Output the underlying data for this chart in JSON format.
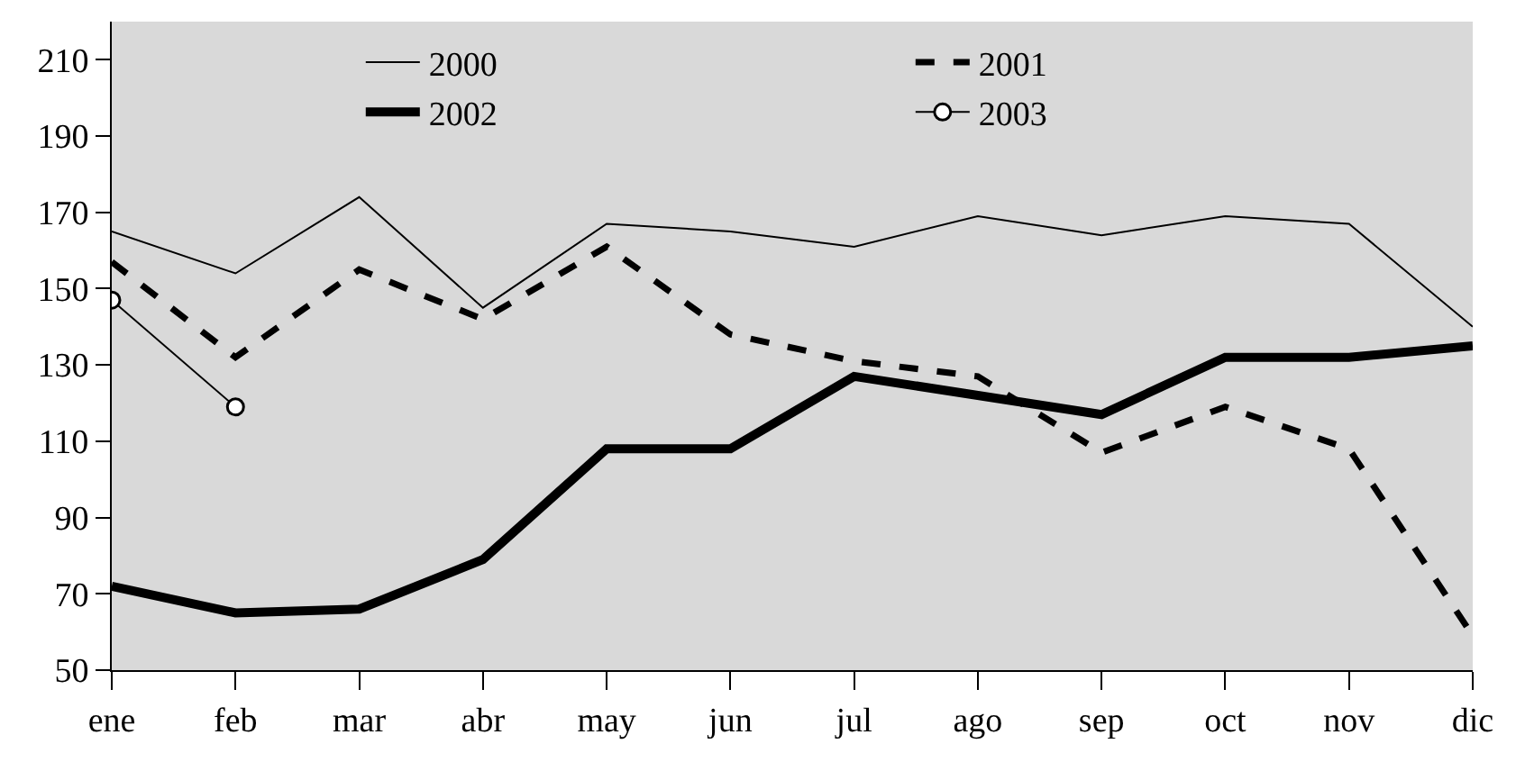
{
  "chart_data": {
    "type": "line",
    "categories": [
      "ene",
      "feb",
      "mar",
      "abr",
      "may",
      "jun",
      "jul",
      "ago",
      "sep",
      "oct",
      "nov",
      "dic"
    ],
    "series": [
      {
        "name": "2000",
        "color": "#000000",
        "line_style": "solid",
        "marker": "none",
        "values": [
          165,
          154,
          174,
          145,
          167,
          165,
          161,
          169,
          164,
          169,
          167,
          140
        ]
      },
      {
        "name": "2001",
        "color": "#000000",
        "line_style": "dashed",
        "marker": "none",
        "values": [
          157,
          132,
          155,
          142,
          161,
          138,
          131,
          127,
          107,
          119,
          108,
          59
        ]
      },
      {
        "name": "2002",
        "color": "#000000",
        "line_style": "solid",
        "marker": "none",
        "values": [
          72,
          65,
          66,
          79,
          108,
          108,
          127,
          122,
          117,
          132,
          132,
          135
        ]
      },
      {
        "name": "2003",
        "color": "#000000",
        "line_style": "solid",
        "marker": "circle",
        "values": [
          147,
          119,
          null,
          null,
          null,
          null,
          null,
          null,
          null,
          null,
          null,
          null
        ]
      }
    ],
    "ylim": [
      50,
      220
    ],
    "yticks": [
      50,
      70,
      90,
      110,
      130,
      150,
      170,
      190,
      210
    ],
    "grid": false,
    "legend": "top"
  }
}
